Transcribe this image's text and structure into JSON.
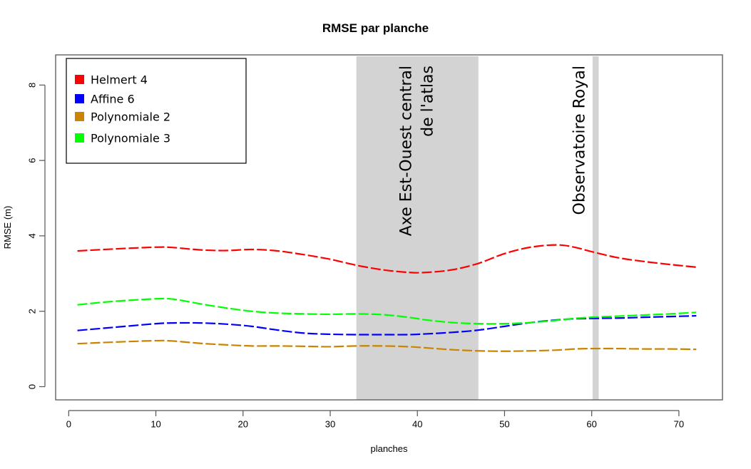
{
  "chart_data": {
    "type": "line",
    "title": "RMSE par planche",
    "xlabel": "planches",
    "ylabel": "RMSE (m)",
    "xlim": [
      -1.5,
      75
    ],
    "ylim": [
      -0.35,
      8.8
    ],
    "xticks": [
      0,
      10,
      20,
      30,
      40,
      50,
      60,
      70
    ],
    "yticks": [
      0,
      2,
      4,
      6,
      8
    ],
    "grid": false,
    "legend_position": "top-left",
    "line_style": "dashed",
    "series": [
      {
        "name": "Helmert 4",
        "color": "#ff0000",
        "x": [
          1,
          5,
          10,
          12,
          15,
          18,
          21,
          24,
          27,
          30,
          33,
          36,
          39,
          41,
          44,
          47,
          50,
          53,
          56,
          58,
          60,
          63,
          66,
          69,
          72
        ],
        "y": [
          3.6,
          3.65,
          3.7,
          3.69,
          3.63,
          3.61,
          3.64,
          3.6,
          3.5,
          3.38,
          3.22,
          3.1,
          3.03,
          3.03,
          3.1,
          3.27,
          3.53,
          3.7,
          3.76,
          3.7,
          3.58,
          3.42,
          3.32,
          3.24,
          3.17
        ]
      },
      {
        "name": "Affine 6",
        "color": "#0000ff",
        "x": [
          1,
          5,
          10,
          12,
          15,
          18,
          21,
          24,
          27,
          30,
          33,
          36,
          39,
          41,
          44,
          47,
          50,
          53,
          56,
          58,
          60,
          63,
          66,
          69,
          72
        ],
        "y": [
          1.49,
          1.57,
          1.67,
          1.69,
          1.69,
          1.66,
          1.6,
          1.5,
          1.42,
          1.39,
          1.38,
          1.38,
          1.38,
          1.4,
          1.44,
          1.5,
          1.6,
          1.7,
          1.77,
          1.8,
          1.81,
          1.82,
          1.84,
          1.86,
          1.88
        ]
      },
      {
        "name": "Polynomiale 2",
        "color": "#cc8400",
        "x": [
          1,
          5,
          10,
          12,
          15,
          18,
          21,
          24,
          27,
          30,
          33,
          36,
          39,
          41,
          44,
          47,
          50,
          53,
          56,
          58,
          60,
          63,
          66,
          69,
          72
        ],
        "y": [
          1.14,
          1.18,
          1.22,
          1.21,
          1.15,
          1.11,
          1.08,
          1.08,
          1.07,
          1.06,
          1.08,
          1.08,
          1.06,
          1.03,
          0.98,
          0.95,
          0.94,
          0.95,
          0.97,
          1.0,
          1.01,
          1.01,
          1.0,
          1.0,
          0.99
        ]
      },
      {
        "name": "Polynomiale 3",
        "color": "#00ff00",
        "x": [
          1,
          5,
          10,
          12,
          15,
          18,
          21,
          24,
          27,
          30,
          33,
          36,
          39,
          41,
          44,
          47,
          50,
          53,
          56,
          58,
          60,
          63,
          66,
          69,
          72
        ],
        "y": [
          2.17,
          2.26,
          2.33,
          2.32,
          2.2,
          2.09,
          2.0,
          1.95,
          1.93,
          1.92,
          1.93,
          1.91,
          1.84,
          1.77,
          1.7,
          1.67,
          1.67,
          1.7,
          1.76,
          1.81,
          1.84,
          1.87,
          1.9,
          1.93,
          1.97
        ]
      }
    ],
    "shaded_regions": [
      {
        "label": [
          "Axe Est-Ouest central",
          "de l'atlas"
        ],
        "x_start": 33,
        "x_end": 47,
        "color": "#d3d3d3"
      },
      {
        "label": [
          "Observatoire Royal"
        ],
        "x_start": 60.1,
        "x_end": 60.8,
        "color": "#d3d3d3"
      }
    ]
  }
}
